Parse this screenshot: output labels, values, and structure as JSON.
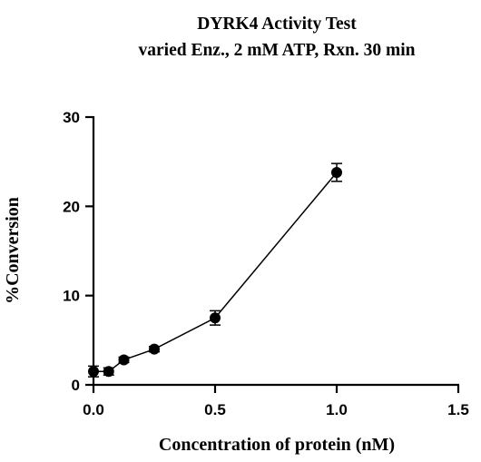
{
  "chart_data": {
    "type": "scatter",
    "title": "DYRK4 Activity Test",
    "subtitle": "varied Enz., 2 mM ATP, Rxn. 30 min",
    "xlabel": "Concentration of protein (nM)",
    "ylabel": "%Conversion",
    "xlim": [
      0,
      1.5
    ],
    "ylim": [
      0,
      30
    ],
    "x_ticks": [
      "0.0",
      "0.5",
      "1.0",
      "1.5"
    ],
    "y_ticks": [
      "0",
      "10",
      "20",
      "30"
    ],
    "grid": false,
    "legend": "none",
    "series": [
      {
        "x": [
          0.0,
          0.0625,
          0.125,
          0.25,
          0.5,
          1.0
        ],
        "y": [
          1.5,
          1.5,
          2.8,
          4.0,
          7.5,
          23.8
        ],
        "error": [
          0.6,
          0.4,
          0.3,
          0.3,
          0.8,
          1.0
        ],
        "color": "#000000"
      }
    ]
  }
}
